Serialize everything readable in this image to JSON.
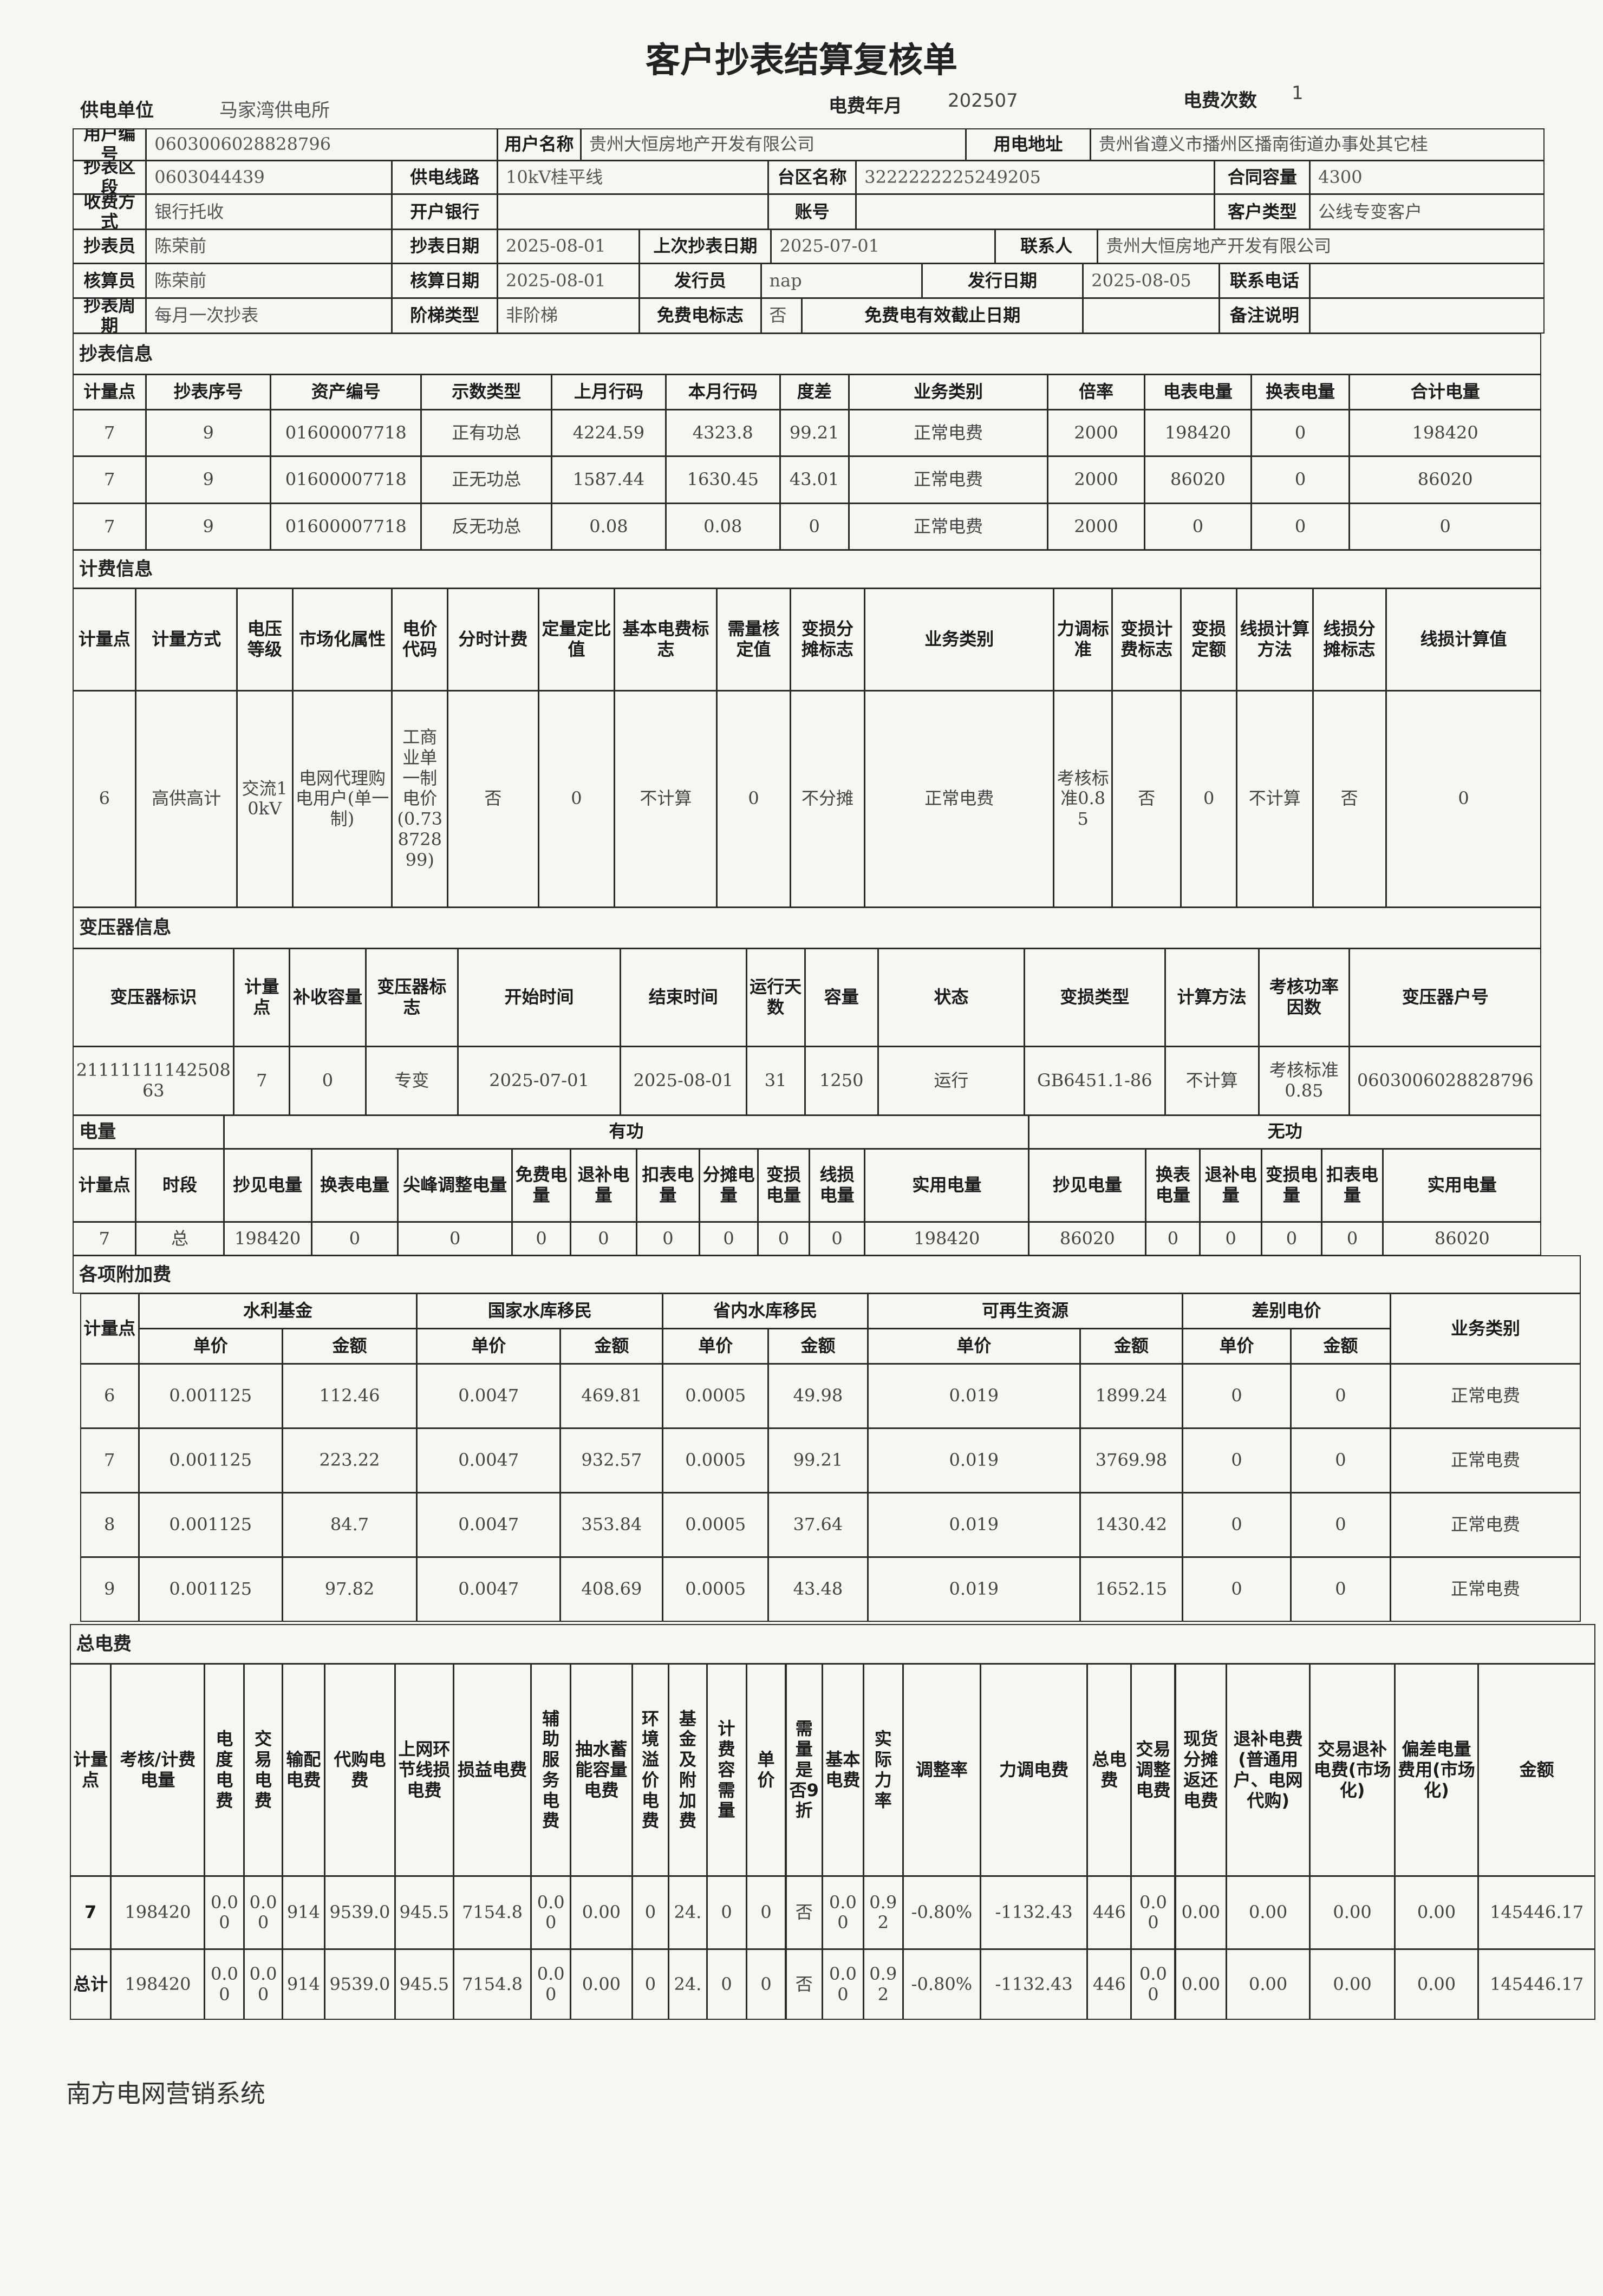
{
  "title": "客户抄表结算复核单",
  "header": {
    "supply_unit_label": "供电单位",
    "supply_unit": "马家湾供电所",
    "month_label": "电费年月",
    "month": "202507",
    "count_label": "电费次数",
    "count": "1"
  },
  "info": {
    "rows": [
      [
        "用户编号",
        "0603006028828796",
        "用户名称",
        "贵州大恒房地产开发有限公司",
        "用电地址",
        "贵州省遵义市播州区播南街道办事处其它桂"
      ],
      [
        "抄表区段",
        "0603044439",
        "供电线路",
        "10kV桂平线",
        "台区名称",
        "3222222225249205",
        "合同容量",
        "4300"
      ],
      [
        "收费方式",
        "银行托收",
        "开户银行",
        null,
        "账号",
        null,
        "客户类型",
        "公线专变客户"
      ],
      [
        "抄表员",
        "陈荣前",
        "抄表日期",
        "2025-08-01",
        "上次抄表日期",
        "2025-07-01",
        "联系人",
        "贵州大恒房地产开发有限公司"
      ],
      [
        "核算员",
        "陈荣前",
        "核算日期",
        "2025-08-01",
        "发行员",
        "nap",
        "发行日期",
        "2025-08-05",
        "联系电话",
        null
      ],
      [
        "抄表周期",
        "每月一次抄表",
        "阶梯类型",
        "非阶梯",
        "免费电标志",
        "否",
        "免费电有效截止日期",
        null,
        "备注说明",
        null
      ]
    ]
  },
  "meter_reading": {
    "heading": "抄表信息",
    "header": [
      "计量点",
      "抄表序号",
      "资产编号",
      "示数类型",
      "上月行码",
      "本月行码",
      "度差",
      "业务类别",
      "倍率",
      "电表电量",
      "换表电量",
      "合计电量"
    ],
    "rows": [
      [
        "7",
        "9",
        "01600007718",
        "正有功总",
        "4224.59",
        "4323.8",
        "99.21",
        "正常电费",
        "2000",
        "198420",
        "0",
        "198420"
      ],
      [
        "7",
        "9",
        "01600007718",
        "正无功总",
        "1587.44",
        "1630.45",
        "43.01",
        "正常电费",
        "2000",
        "86020",
        "0",
        "86020"
      ],
      [
        "7",
        "9",
        "01600007718",
        "反无功总",
        "0.08",
        "0.08",
        "0",
        "正常电费",
        "2000",
        "0",
        "0",
        "0"
      ]
    ]
  },
  "billing": {
    "heading": "计费信息",
    "header": [
      "计量点",
      "计量方式",
      "电压等级",
      "市场化属性",
      "电价代码",
      "分时计费",
      "定量定比值",
      "基本电费标志",
      "需量核定值",
      "变损分摊标志",
      "业务类别",
      "力调标准",
      "变损计费标志",
      "变损定额",
      "线损计算方法",
      "线损分摊标志",
      "线损计算值"
    ],
    "rows": [
      [
        "6",
        "高供高计",
        "交流10kV",
        "电网代理购电用户(单一制)",
        "工商业单一制电价(0.73872899)",
        "否",
        "0",
        "不计算",
        "0",
        "不分摊",
        "正常电费",
        "考核标准0.85",
        "否",
        "0",
        "不计算",
        "否",
        "0"
      ]
    ]
  },
  "transformer": {
    "heading": "变压器信息",
    "header": [
      "变压器标识",
      "计量点",
      "补收容量",
      "变压器标志",
      "开始时间",
      "结束时间",
      "运行天数",
      "容量",
      "状态",
      "变损类型",
      "计算方法",
      "考核功率因数",
      "变压器户号"
    ],
    "rows": [
      [
        "2111111114250863",
        "7",
        "0",
        "专变",
        "2025-07-01",
        "2025-08-01",
        "31",
        "1250",
        "运行",
        "GB6451.1-86",
        "不计算",
        "考核标准0.85",
        "0603006028828796"
      ]
    ]
  },
  "energy": {
    "heading": "电量",
    "groups": [
      "有功",
      "无功"
    ],
    "header": [
      "计量点",
      "时段",
      "抄见电量",
      "换表电量",
      "尖峰调整电量",
      "免费电量",
      "退补电量",
      "扣表电量",
      "分摊电量",
      "变损电量",
      "线损电量",
      "实用电量",
      "抄见电量",
      "换表电量",
      "退补电量",
      "变损电量",
      "扣表电量",
      "实用电量"
    ],
    "rows": [
      [
        "7",
        "总",
        "198420",
        "0",
        "0",
        "0",
        "0",
        "0",
        "0",
        "0",
        "0",
        "198420",
        "86020",
        "0",
        "0",
        "0",
        "0",
        "86020"
      ]
    ]
  },
  "surcharges": {
    "heading": "各项附加费",
    "header_top": [
      "计量点",
      "水利基金",
      "国家水库移民",
      "省内水库移民",
      "可再生资源",
      "差别电价",
      "业务类别"
    ],
    "header_sub": [
      "单价",
      "金额",
      "单价",
      "金额",
      "单价",
      "金额",
      "单价",
      "金额",
      "单价",
      "金额"
    ],
    "rows": [
      [
        "6",
        "0.001125",
        "112.46",
        "0.0047",
        "469.81",
        "0.0005",
        "49.98",
        "0.019",
        "1899.24",
        "0",
        "0",
        "正常电费"
      ],
      [
        "7",
        "0.001125",
        "223.22",
        "0.0047",
        "932.57",
        "0.0005",
        "99.21",
        "0.019",
        "3769.98",
        "0",
        "0",
        "正常电费"
      ],
      [
        "8",
        "0.001125",
        "84.7",
        "0.0047",
        "353.84",
        "0.0005",
        "37.64",
        "0.019",
        "1430.42",
        "0",
        "0",
        "正常电费"
      ],
      [
        "9",
        "0.001125",
        "97.82",
        "0.0047",
        "408.69",
        "0.0005",
        "43.48",
        "0.019",
        "1652.15",
        "0",
        "0",
        "正常电费"
      ]
    ]
  },
  "total": {
    "heading": "总电费",
    "header": [
      "计量点",
      "考核/计费电量",
      "电度电费",
      "交易电费",
      "输配电费",
      "代购电费",
      "上网环节线损电费",
      "损益电费",
      "辅助服务电费",
      "抽水蓄能容量电费",
      "环境溢价电费",
      "基金及附加费",
      "计费容需量",
      "单价",
      "需量是否9折",
      "基本电费",
      "实际力率",
      "调整率",
      "力调电费",
      "总电费",
      "交易调整电费",
      "现货分摊返还电费",
      "退补电费(普通用户、电网代购)",
      "交易退补电费(市场化)",
      "偏差电量费用(市场化)",
      "金额"
    ],
    "rows": [
      [
        "7",
        "198420",
        "0.00",
        "0.00",
        "914",
        "9539.0",
        "945.5",
        "7154.8",
        "0.00",
        "0.00",
        "0",
        "24.",
        "0",
        "0",
        "否",
        "0.00",
        "0.92",
        "-0.80%",
        "-1132.43",
        "446",
        "0.00",
        "0.00",
        "0.00",
        "0.00",
        "0.00",
        "145446.17"
      ],
      [
        "总计",
        "198420",
        "0.00",
        "0.00",
        "914",
        "9539.0",
        "945.5",
        "7154.8",
        "0.00",
        "0.00",
        "0",
        "24.",
        "0",
        "0",
        "否",
        "0.00",
        "0.92",
        "-0.80%",
        "-1132.43",
        "446",
        "0.00",
        "0.00",
        "0.00",
        "0.00",
        "0.00",
        "145446.17"
      ]
    ]
  },
  "footer": "南方电网营销系统"
}
